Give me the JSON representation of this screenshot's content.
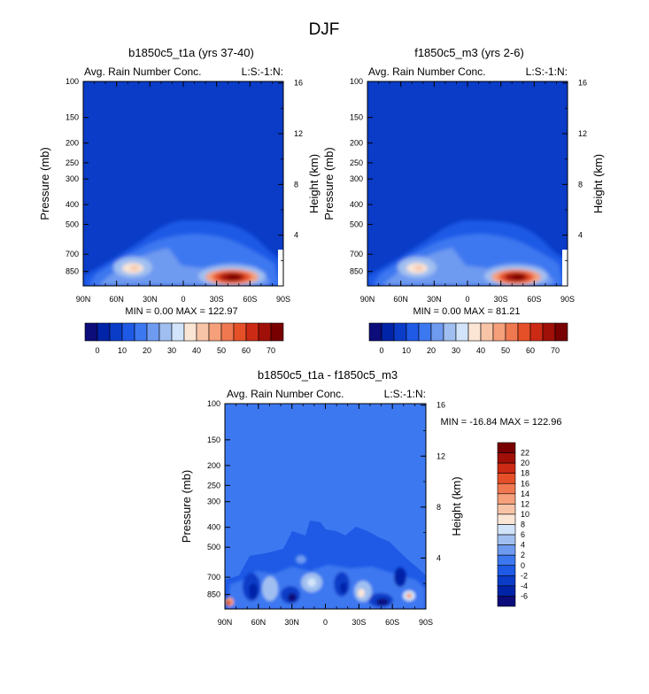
{
  "page_title": "DJF",
  "palette": {
    "top": [
      "#0c0c7a",
      "#0024a8",
      "#0a3cc8",
      "#1e5ae6",
      "#3c78f0",
      "#6e9af0",
      "#a0bff0",
      "#d2e4fa",
      "#fbe6d6",
      "#f8c4a8",
      "#f5a07a",
      "#f07850",
      "#e65028",
      "#cc2a14",
      "#a01008",
      "#780000"
    ],
    "diff": [
      "#0c0c7a",
      "#0024a8",
      "#0a3cc8",
      "#1e5ae6",
      "#3c78f0",
      "#6e9af0",
      "#a0bff0",
      "#d2e4fa",
      "#fbe6d6",
      "#f8c4a8",
      "#f5a07a",
      "#f07850",
      "#e65028",
      "#cc2a14",
      "#a01008",
      "#780000"
    ]
  },
  "chart_data": [
    {
      "type": "heatmap",
      "title": "b1850c5_t1a (yrs 37-40)",
      "left_label": "Avg. Rain Number Conc.",
      "right_label": "L:S:-1:N:",
      "xlabel": "",
      "ylabel": "Pressure (mb)",
      "ylabel_right": "Height (km)",
      "x_ticks": [
        "90N",
        "60N",
        "30N",
        "0",
        "30S",
        "60S",
        "90S"
      ],
      "y_ticks": [
        "100",
        "150",
        "200",
        "250",
        "300",
        "400",
        "500",
        "700",
        "850"
      ],
      "y_ticks_right": [
        "16",
        "12",
        "8",
        "4"
      ],
      "x_range": [
        90,
        -90
      ],
      "y_range_mb": [
        100,
        1000
      ],
      "stats_text": "MIN =  0.00   MAX = 122.97",
      "colorbar_labels": [
        "0",
        "10",
        "20",
        "30",
        "40",
        "50",
        "60",
        "70"
      ],
      "features": [
        {
          "lat": 35,
          "mb": 800,
          "value": 40
        },
        {
          "lat": -40,
          "mb": 850,
          "value": 70
        }
      ]
    },
    {
      "type": "heatmap",
      "title": "f1850c5_m3 (yrs 2-6)",
      "left_label": "Avg. Rain Number Conc.",
      "right_label": "L:S:-1:N:",
      "xlabel": "",
      "ylabel": "Pressure (mb)",
      "ylabel_right": "Height (km)",
      "x_ticks": [
        "90N",
        "60N",
        "30N",
        "0",
        "30S",
        "60S",
        "90S"
      ],
      "y_ticks": [
        "100",
        "150",
        "200",
        "250",
        "300",
        "400",
        "500",
        "700",
        "850"
      ],
      "y_ticks_right": [
        "16",
        "12",
        "8",
        "4"
      ],
      "x_range": [
        90,
        -90
      ],
      "y_range_mb": [
        100,
        1000
      ],
      "stats_text": "MIN =  0.00   MAX =  81.21",
      "colorbar_labels": [
        "0",
        "10",
        "20",
        "30",
        "40",
        "50",
        "60",
        "70"
      ],
      "features": [
        {
          "lat": 35,
          "mb": 800,
          "value": 40
        },
        {
          "lat": -40,
          "mb": 850,
          "value": 70
        }
      ]
    },
    {
      "type": "heatmap",
      "title": "b1850c5_t1a - f1850c5_m3",
      "left_label": "Avg. Rain Number Conc.",
      "right_label": "L:S:-1:N:",
      "xlabel": "",
      "ylabel": "Pressure (mb)",
      "ylabel_right": "Height (km)",
      "x_ticks": [
        "90N",
        "60N",
        "30N",
        "0",
        "30S",
        "60S",
        "90S"
      ],
      "y_ticks": [
        "100",
        "150",
        "200",
        "250",
        "300",
        "400",
        "500",
        "700",
        "850"
      ],
      "y_ticks_right": [
        "16",
        "12",
        "8",
        "4"
      ],
      "x_range": [
        90,
        -90
      ],
      "y_range_mb": [
        100,
        1000
      ],
      "stats_text": "MIN = -16.84   MAX = 122.96",
      "colorbar_labels": [
        "22",
        "20",
        "18",
        "16",
        "14",
        "12",
        "10",
        "8",
        "6",
        "4",
        "2",
        "0",
        "-2",
        "-4",
        "-6"
      ]
    }
  ]
}
